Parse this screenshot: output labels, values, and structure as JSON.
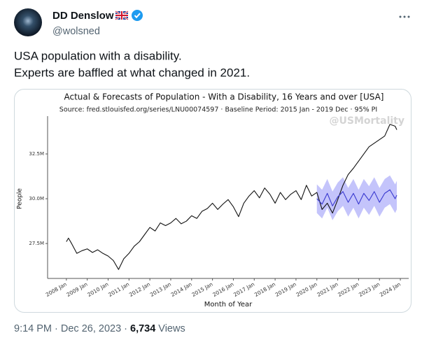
{
  "author": {
    "name": "DD Denslow",
    "handle": "@wolsned"
  },
  "text": [
    "USA population with a disability.",
    "Experts are baffled at what changed in 2021."
  ],
  "footer": {
    "meta": "9:14 PM · Dec 26, 2023 ·",
    "views": "6,734",
    "views_label": "Views"
  },
  "chart_data": {
    "type": "line",
    "title": "Actual & Forecasts of Population - With a Disability, 16 Years and over [USA]",
    "subtitle": "Source: fred.stlouisfed.org/series/LNU00074597 · Baseline Period: 2015 Jan - 2019 Dec · 95% PI",
    "watermark": "@USMortality",
    "xlabel": "Month of Year",
    "ylabel": "People",
    "xlim": [
      2007.1,
      2024.4
    ],
    "xticks": [
      {
        "value": 2008,
        "label": "2008 Jan"
      },
      {
        "value": 2009,
        "label": "2009 Jan"
      },
      {
        "value": 2010,
        "label": "2010 Jan"
      },
      {
        "value": 2011,
        "label": "2011 Jan"
      },
      {
        "value": 2012,
        "label": "2012 Jan"
      },
      {
        "value": 2013,
        "label": "2013 Jan"
      },
      {
        "value": 2014,
        "label": "2014 Jan"
      },
      {
        "value": 2015,
        "label": "2015 Jan"
      },
      {
        "value": 2016,
        "label": "2016 Jan"
      },
      {
        "value": 2017,
        "label": "2017 Jan"
      },
      {
        "value": 2018,
        "label": "2018 Jan"
      },
      {
        "value": 2019,
        "label": "2019 Jan"
      },
      {
        "value": 2020,
        "label": "2020 Jan"
      },
      {
        "value": 2021,
        "label": "2021 Jan"
      },
      {
        "value": 2022,
        "label": "2022 Jan"
      },
      {
        "value": 2023,
        "label": "2023 Jan"
      },
      {
        "value": 2024,
        "label": "2024 Jan"
      }
    ],
    "ylim": [
      25.55,
      34.61
    ],
    "yticks": [
      {
        "value": 27.5,
        "label": "27.5M"
      },
      {
        "value": 30,
        "label": "30.0M"
      },
      {
        "value": 32.5,
        "label": "32.5M"
      }
    ],
    "series": [
      {
        "color": "#111111",
        "x": [
          2008,
          2008.1,
          2008.25,
          2008.5,
          2008.75,
          2009,
          2009.25,
          2009.5,
          2009.75,
          2010,
          2010.25,
          2010.5,
          2010.75,
          2011,
          2011.25,
          2011.5,
          2011.75,
          2012,
          2012.25,
          2012.5,
          2012.75,
          2013,
          2013.25,
          2013.5,
          2013.75,
          2014,
          2014.25,
          2014.5,
          2014.75,
          2015,
          2015.25,
          2015.5,
          2015.75,
          2016,
          2016.25,
          2016.5,
          2016.75,
          2017,
          2017.25,
          2017.5,
          2017.75,
          2018,
          2018.25,
          2018.5,
          2018.75,
          2019,
          2019.25,
          2019.5,
          2019.75,
          2020,
          2020.25,
          2020.5,
          2020.75,
          2021,
          2021.25,
          2021.5,
          2021.75,
          2022,
          2022.25,
          2022.5,
          2022.75,
          2023,
          2023.25,
          2023.5,
          2023.75,
          2023.83
        ],
        "values": [
          27.6,
          27.8,
          27.5,
          26.95,
          27.1,
          27.2,
          27.0,
          27.15,
          26.95,
          26.8,
          26.55,
          26.05,
          26.65,
          26.95,
          27.35,
          27.6,
          28.0,
          28.4,
          28.2,
          28.65,
          28.5,
          28.65,
          28.9,
          28.6,
          28.75,
          29.05,
          28.9,
          29.3,
          29.45,
          29.75,
          29.4,
          29.7,
          29.95,
          29.55,
          29.0,
          29.75,
          30.15,
          30.45,
          30.05,
          30.6,
          30.25,
          29.75,
          30.35,
          29.95,
          30.25,
          30.45,
          29.95,
          30.75,
          30.15,
          30.35,
          29.4,
          29.75,
          29.2,
          29.95,
          30.75,
          31.35,
          31.7,
          32.1,
          32.5,
          32.9,
          33.1,
          33.3,
          33.5,
          34.15,
          34.05,
          33.85
        ]
      },
      {
        "color": "#3a3ad0",
        "band_color": "#c4c4fb",
        "x": [
          2020,
          2020.25,
          2020.5,
          2020.75,
          2021,
          2021.25,
          2021.5,
          2021.75,
          2022,
          2022.25,
          2022.5,
          2022.75,
          2023,
          2023.25,
          2023.5,
          2023.75,
          2023.83
        ],
        "values": [
          30.0,
          29.7,
          30.3,
          29.6,
          30.1,
          30.4,
          29.8,
          30.3,
          29.7,
          30.3,
          29.9,
          30.4,
          29.8,
          30.3,
          30.5,
          30.0,
          30.2
        ],
        "lower": [
          29.2,
          28.9,
          29.5,
          28.8,
          29.3,
          29.6,
          29.0,
          29.5,
          28.9,
          29.5,
          29.1,
          29.6,
          29.0,
          29.5,
          29.7,
          29.2,
          29.4
        ],
        "upper": [
          30.8,
          30.5,
          31.1,
          30.4,
          30.9,
          31.2,
          30.6,
          31.1,
          30.5,
          31.1,
          30.7,
          31.2,
          30.6,
          31.1,
          31.3,
          30.8,
          31.0
        ]
      }
    ]
  }
}
